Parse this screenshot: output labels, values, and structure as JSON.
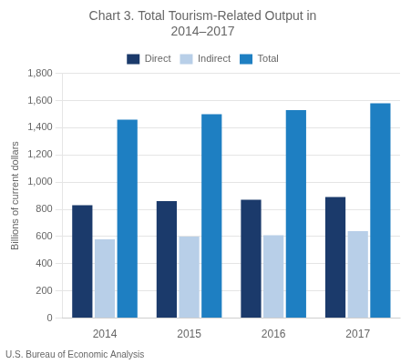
{
  "chart_data": {
    "type": "bar",
    "title": "Chart 3. Total Tourism-Related Output in\n2014–2017",
    "ylabel": "Billions of current dollars",
    "footnote": "U.S. Bureau of Economic Analysis",
    "categories": [
      "2014",
      "2015",
      "2016",
      "2017"
    ],
    "series": [
      {
        "name": "Direct",
        "color": "#1b3a6b",
        "values": [
          830,
          860,
          870,
          890
        ]
      },
      {
        "name": "Indirect",
        "color": "#b8cfe8",
        "values": [
          580,
          600,
          610,
          640
        ]
      },
      {
        "name": "Total",
        "color": "#1e7fc2",
        "values": [
          1460,
          1500,
          1530,
          1580
        ]
      }
    ],
    "ylim": [
      0,
      1800
    ],
    "yticks": [
      0,
      200,
      400,
      600,
      800,
      {
        "value": 1000,
        "label": "1,000"
      },
      {
        "value": 1200,
        "label": "1,200"
      },
      {
        "value": 1400,
        "label": "1,400"
      },
      {
        "value": 1600,
        "label": "1,600"
      },
      {
        "value": 1800,
        "label": "1,800"
      }
    ],
    "grid": true,
    "legend": "top"
  }
}
